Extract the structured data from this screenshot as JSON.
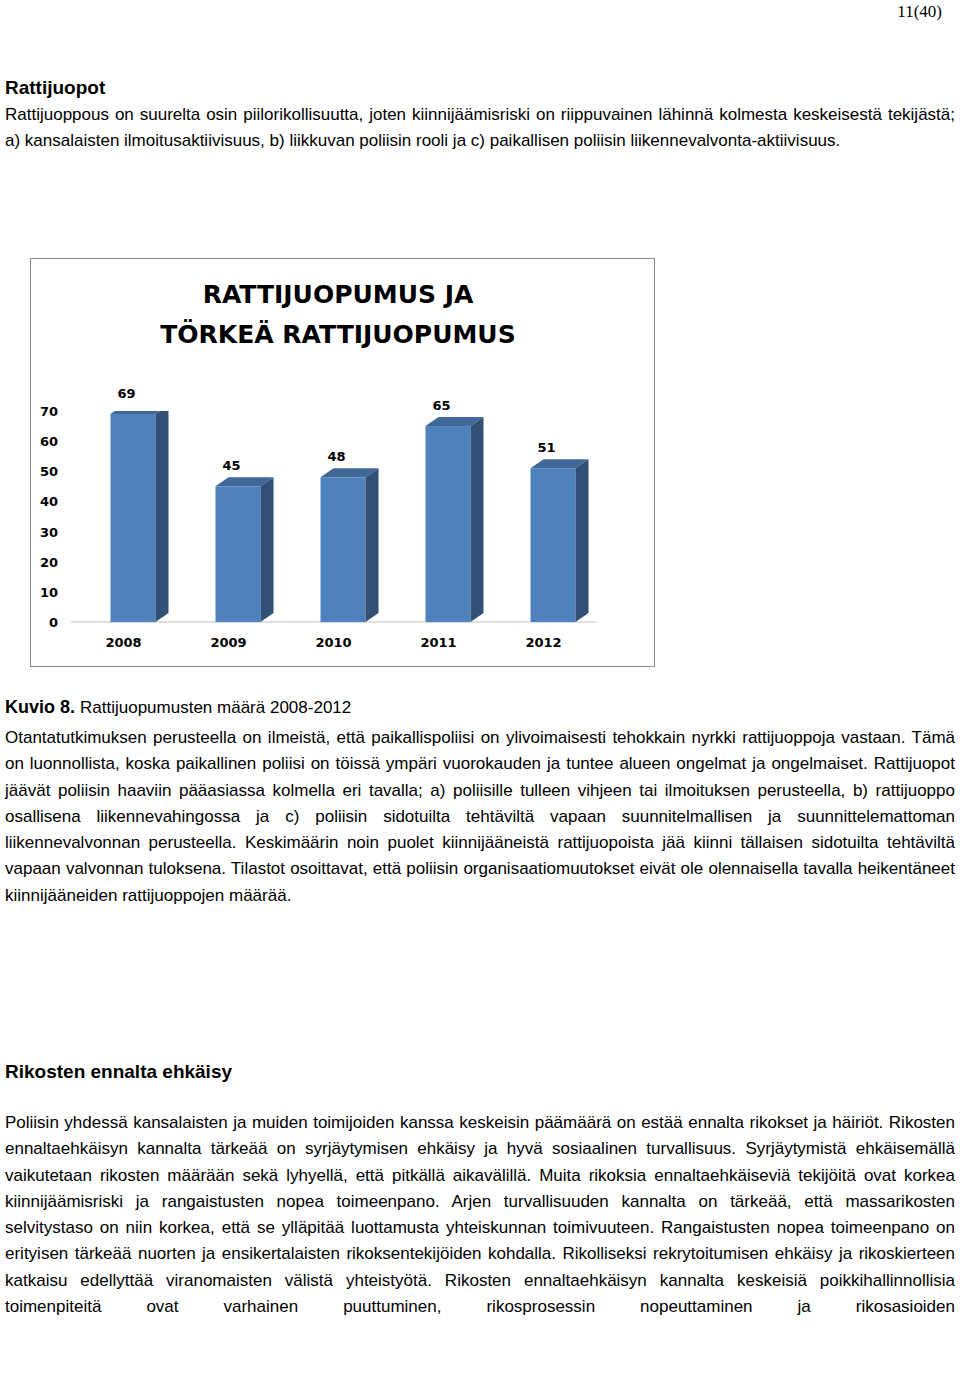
{
  "page_number": "11(40)",
  "sections": [
    {
      "heading": "Rattijuopot",
      "paragraphs": [
        "Rattijuoppous on suurelta osin piilorikollisuutta, joten kiinnijäämisriski on riippuvainen lähinnä kolmesta keskeisestä tekijästä; a) kansalaisten ilmoitusaktiivisuus, b) liikkuvan poliisin rooli ja c) paikallisen poliisin liikennevalvonta-aktiivisuus.",
        "Otantatutkimuksen perusteella on ilmeistä, että paikallispoliisi on ylivoimaisesti tehokkain nyrkki rattijuoppoja vastaan. Tämä on luonnollista, koska paikallinen poliisi on töissä ympäri vuorokauden ja tuntee alueen ongelmat ja ongelmaiset. Rattijuopot jäävät poliisin haaviin pääasiassa kolmella eri tavalla; a) poliisille tulleen vihjeen tai ilmoituksen perusteella, b) rattijuoppo osallisena liikennevahingossa ja c) poliisin sidotuilta tehtäviltä vapaan suunnitelmallisen ja suunnittelemattoman liikennevalvonnan perusteella. Keskimäärin noin puolet kiinnijääneistä rattijuopoista jää kiinni tällaisen sidotuilta tehtäviltä vapaan valvonnan tuloksena. Tilastot osoittavat, että poliisin organisaatiomuutokset eivät ole olennaisella tavalla heikentäneet kiinnijääneiden rattijuoppojen määrää."
      ]
    },
    {
      "heading": "Rikosten ennalta ehkäisy",
      "paragraphs": [
        "Poliisin yhdessä kansalaisten ja muiden toimijoiden kanssa keskeisin päämäärä on estää ennalta rikokset ja häiriöt. Rikosten ennaltaehkäisyn kannalta tärkeää on syrjäytymisen ehkäisy ja hyvä sosiaalinen turvallisuus. Syrjäytymistä ehkäisemällä vaikutetaan rikosten määrään sekä lyhyellä, että pitkällä aikavälillä. Muita rikoksia ennaltaehkäiseviä tekijöitä ovat korkea kiinnijäämisriski ja rangaistusten nopea toimeenpano. Arjen turvallisuuden kannalta on tärkeää, että massarikosten selvitystaso on niin korkea, että se ylläpitää luottamusta yhteiskunnan toimivuuteen. Rangaistusten nopea toimeenpano on erityisen tärkeää nuorten ja ensikertalaisten rikoksentekijöiden kohdalla. Rikolliseksi rekrytoitumisen ehkäisy ja rikoskierteen katkaisu edellyttää viranomaisten välistä yhteistyötä. Rikosten ennaltaehkäisyn kannalta keskeisiä poikkihallinnollisia toimenpiteitä ovat varhainen puuttuminen, rikosprosessin nopeuttaminen ja rikosasioiden"
      ]
    }
  ],
  "chart_data": {
    "type": "bar",
    "title": "RATTIJUOPUMUS JA TÖRKEÄ RATTIJUOPUMUS",
    "categories": [
      "2008",
      "2009",
      "2010",
      "2011",
      "2012"
    ],
    "values": [
      69,
      45,
      48,
      65,
      51
    ],
    "color": "#4f81bd",
    "ylim": [
      0,
      70
    ],
    "yticks": [
      0,
      10,
      20,
      30,
      40,
      50,
      60,
      70
    ],
    "grid": false,
    "data_labels": true
  },
  "figure_caption": {
    "label": "Kuvio 8.",
    "text": "Rattijuopumusten määrä 2008-2012"
  }
}
